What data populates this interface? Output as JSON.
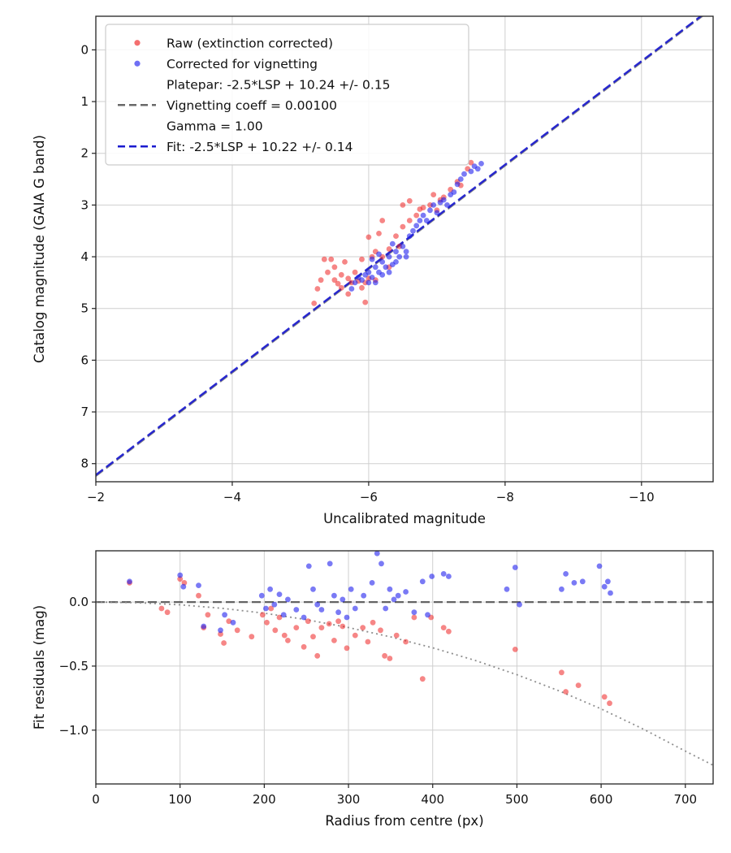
{
  "figure": {
    "background": "#ffffff"
  },
  "chart_data": [
    {
      "type": "scatter",
      "title": "",
      "xlabel": "Uncalibrated magnitude",
      "ylabel": "Catalog magnitude (GAIA G band)",
      "xlim": [
        -2,
        -11.05
      ],
      "ylim": [
        -0.65,
        8.35
      ],
      "grid": true,
      "xticks": {
        "values": [
          -2,
          -4,
          -6,
          -8,
          -10
        ],
        "labels": [
          "−2",
          "−4",
          "−6",
          "−8",
          "−10"
        ]
      },
      "yticks": {
        "values": [
          0,
          1,
          2,
          3,
          4,
          5,
          6,
          7,
          8
        ],
        "labels": [
          "0",
          "1",
          "2",
          "3",
          "4",
          "5",
          "6",
          "7",
          "8"
        ]
      },
      "lines": [
        {
          "name": "platepar-line",
          "x": [
            -2,
            -11.05
          ],
          "y": [
            8.24,
            -0.81
          ],
          "color": "#808080",
          "dash": "11 5",
          "width": 2.2,
          "opacity": 0.9
        },
        {
          "name": "fit-line",
          "x": [
            -2,
            -11.05
          ],
          "y": [
            8.22,
            -0.83
          ],
          "color": "#1a1acf",
          "dash": "11 5",
          "width": 2.5,
          "opacity": 0.92
        }
      ],
      "series": [
        {
          "name": "raw-points",
          "color": "#ee2222",
          "opacity": 0.55,
          "size": 3.4,
          "points": [
            [
              -5.2,
              4.9
            ],
            [
              -5.25,
              4.62
            ],
            [
              -5.3,
              4.45
            ],
            [
              -5.35,
              4.05
            ],
            [
              -5.4,
              4.3
            ],
            [
              -5.45,
              4.05
            ],
            [
              -5.5,
              4.45
            ],
            [
              -5.5,
              4.2
            ],
            [
              -5.55,
              4.52
            ],
            [
              -5.6,
              4.35
            ],
            [
              -5.6,
              4.6
            ],
            [
              -5.65,
              4.1
            ],
            [
              -5.7,
              4.42
            ],
            [
              -5.7,
              4.72
            ],
            [
              -5.75,
              4.5
            ],
            [
              -5.8,
              4.3
            ],
            [
              -5.85,
              4.47
            ],
            [
              -5.9,
              4.6
            ],
            [
              -5.9,
              4.05
            ],
            [
              -5.95,
              4.5
            ],
            [
              -6.0,
              4.42
            ],
            [
              -6.0,
              3.62
            ],
            [
              -6.05,
              4.0
            ],
            [
              -6.1,
              3.9
            ],
            [
              -6.1,
              4.45
            ],
            [
              -6.15,
              3.55
            ],
            [
              -6.2,
              4.0
            ],
            [
              -6.2,
              3.3
            ],
            [
              -6.3,
              3.85
            ],
            [
              -6.3,
              4.2
            ],
            [
              -6.4,
              3.6
            ],
            [
              -6.45,
              3.8
            ],
            [
              -6.5,
              3.42
            ],
            [
              -6.5,
              3.0
            ],
            [
              -6.6,
              3.3
            ],
            [
              -6.6,
              2.92
            ],
            [
              -6.7,
              3.2
            ],
            [
              -6.75,
              3.08
            ],
            [
              -6.8,
              3.05
            ],
            [
              -6.9,
              3.0
            ],
            [
              -6.95,
              2.8
            ],
            [
              -7.0,
              3.1
            ],
            [
              -7.05,
              2.9
            ],
            [
              -7.1,
              2.85
            ],
            [
              -7.2,
              2.7
            ],
            [
              -7.3,
              2.55
            ],
            [
              -7.35,
              2.62
            ],
            [
              -7.45,
              2.3
            ],
            [
              -7.5,
              2.18
            ],
            [
              -5.95,
              4.88
            ]
          ]
        },
        {
          "name": "corrected-points",
          "color": "#2222ee",
          "opacity": 0.6,
          "size": 3.4,
          "points": [
            [
              -5.75,
              4.62
            ],
            [
              -5.8,
              4.5
            ],
            [
              -5.85,
              4.4
            ],
            [
              -5.9,
              4.45
            ],
            [
              -5.95,
              4.35
            ],
            [
              -6.0,
              4.5
            ],
            [
              -6.0,
              4.3
            ],
            [
              -6.05,
              4.4
            ],
            [
              -6.05,
              4.05
            ],
            [
              -6.1,
              4.2
            ],
            [
              -6.1,
              4.5
            ],
            [
              -6.15,
              4.3
            ],
            [
              -6.15,
              3.95
            ],
            [
              -6.2,
              4.1
            ],
            [
              -6.2,
              4.35
            ],
            [
              -6.25,
              4.2
            ],
            [
              -6.3,
              4.0
            ],
            [
              -6.3,
              4.3
            ],
            [
              -6.35,
              4.15
            ],
            [
              -6.4,
              3.9
            ],
            [
              -6.4,
              4.1
            ],
            [
              -6.45,
              4.0
            ],
            [
              -6.5,
              3.8
            ],
            [
              -6.55,
              3.9
            ],
            [
              -6.6,
              3.6
            ],
            [
              -6.65,
              3.5
            ],
            [
              -6.7,
              3.4
            ],
            [
              -6.75,
              3.3
            ],
            [
              -6.8,
              3.2
            ],
            [
              -6.85,
              3.3
            ],
            [
              -6.9,
              3.1
            ],
            [
              -6.95,
              3.0
            ],
            [
              -7.0,
              3.15
            ],
            [
              -7.05,
              2.95
            ],
            [
              -7.1,
              2.9
            ],
            [
              -7.15,
              3.0
            ],
            [
              -7.2,
              2.8
            ],
            [
              -7.25,
              2.75
            ],
            [
              -7.3,
              2.6
            ],
            [
              -7.35,
              2.5
            ],
            [
              -7.4,
              2.4
            ],
            [
              -7.5,
              2.35
            ],
            [
              -7.55,
              2.25
            ],
            [
              -7.6,
              2.3
            ],
            [
              -7.65,
              2.2
            ],
            [
              -6.35,
              3.75
            ],
            [
              -6.55,
              4.0
            ]
          ]
        }
      ],
      "legend": {
        "entries": [
          {
            "marker": "dot",
            "color": "#ee2222",
            "label_lines": [
              "Raw (extinction corrected)"
            ]
          },
          {
            "marker": "dot",
            "color": "#2222ee",
            "label_lines": [
              "Corrected for vignetting"
            ]
          },
          {
            "marker": "dash",
            "color": "#696969",
            "label_lines": [
              "Platepar: -2.5*LSP + 10.24 +/- 0.15",
              "Vignetting coeff = 0.00100",
              "Gamma = 1.00"
            ]
          },
          {
            "marker": "dash",
            "color": "#1a1acf",
            "label_lines": [
              "Fit: -2.5*LSP + 10.22 +/- 0.14"
            ]
          }
        ]
      }
    },
    {
      "type": "scatter",
      "title": "",
      "xlabel": "Radius from centre (px)",
      "ylabel": "Fit residuals (mag)",
      "xlim": [
        0,
        733
      ],
      "ylim": [
        0.4,
        -1.42
      ],
      "grid": true,
      "xticks": {
        "values": [
          0,
          100,
          200,
          300,
          400,
          500,
          600,
          700
        ],
        "labels": [
          "0",
          "100",
          "200",
          "300",
          "400",
          "500",
          "600",
          "700"
        ]
      },
      "yticks": {
        "values": [
          0.0,
          -0.5,
          -1.0
        ],
        "labels": [
          "0.0",
          "−0.5",
          "−1.0"
        ]
      },
      "lines": [
        {
          "name": "zero-line",
          "x": [
            0,
            733
          ],
          "y": [
            0,
            0
          ],
          "color": "#555555",
          "dash": "11 5",
          "width": 2.2,
          "opacity": 0.9
        }
      ],
      "curves": [
        {
          "name": "vignetting-loss-curve",
          "color": "#888888",
          "dash": "2 4",
          "width": 1.8,
          "opacity": 0.95,
          "points": [
            [
              0,
              0
            ],
            [
              50,
              -0.005
            ],
            [
              100,
              -0.022
            ],
            [
              150,
              -0.049
            ],
            [
              200,
              -0.087
            ],
            [
              250,
              -0.137
            ],
            [
              300,
              -0.199
            ],
            [
              350,
              -0.272
            ],
            [
              400,
              -0.357
            ],
            [
              450,
              -0.455
            ],
            [
              500,
              -0.567
            ],
            [
              550,
              -0.693
            ],
            [
              600,
              -0.834
            ],
            [
              650,
              -0.991
            ],
            [
              700,
              -1.164
            ],
            [
              733,
              -1.274
            ]
          ]
        }
      ],
      "series": [
        {
          "name": "raw-residuals",
          "color": "#ee2222",
          "opacity": 0.55,
          "size": 3.4,
          "points": [
            [
              40,
              0.15
            ],
            [
              78,
              -0.05
            ],
            [
              85,
              -0.08
            ],
            [
              100,
              0.18
            ],
            [
              105,
              0.15
            ],
            [
              122,
              0.05
            ],
            [
              128,
              -0.2
            ],
            [
              133,
              -0.1
            ],
            [
              148,
              -0.25
            ],
            [
              152,
              -0.32
            ],
            [
              158,
              -0.15
            ],
            [
              168,
              -0.22
            ],
            [
              185,
              -0.27
            ],
            [
              198,
              -0.1
            ],
            [
              203,
              -0.16
            ],
            [
              208,
              -0.05
            ],
            [
              213,
              -0.22
            ],
            [
              218,
              -0.12
            ],
            [
              224,
              -0.26
            ],
            [
              228,
              -0.3
            ],
            [
              238,
              -0.2
            ],
            [
              247,
              -0.35
            ],
            [
              252,
              -0.15
            ],
            [
              258,
              -0.27
            ],
            [
              263,
              -0.42
            ],
            [
              268,
              -0.2
            ],
            [
              277,
              -0.17
            ],
            [
              283,
              -0.3
            ],
            [
              288,
              -0.15
            ],
            [
              293,
              -0.19
            ],
            [
              298,
              -0.36
            ],
            [
              308,
              -0.26
            ],
            [
              317,
              -0.2
            ],
            [
              323,
              -0.31
            ],
            [
              329,
              -0.16
            ],
            [
              338,
              -0.22
            ],
            [
              343,
              -0.42
            ],
            [
              349,
              -0.44
            ],
            [
              357,
              -0.26
            ],
            [
              368,
              -0.31
            ],
            [
              378,
              -0.12
            ],
            [
              388,
              -0.6
            ],
            [
              398,
              -0.12
            ],
            [
              413,
              -0.2
            ],
            [
              419,
              -0.23
            ],
            [
              498,
              -0.37
            ],
            [
              553,
              -0.55
            ],
            [
              558,
              -0.7
            ],
            [
              573,
              -0.65
            ],
            [
              604,
              -0.74
            ],
            [
              610,
              -0.79
            ]
          ]
        },
        {
          "name": "corrected-residuals",
          "color": "#2222ee",
          "opacity": 0.6,
          "size": 3.4,
          "points": [
            [
              40,
              0.16
            ],
            [
              100,
              0.21
            ],
            [
              104,
              0.12
            ],
            [
              122,
              0.13
            ],
            [
              128,
              -0.19
            ],
            [
              148,
              -0.22
            ],
            [
              153,
              -0.1
            ],
            [
              163,
              -0.16
            ],
            [
              197,
              0.05
            ],
            [
              202,
              -0.05
            ],
            [
              207,
              0.1
            ],
            [
              212,
              -0.02
            ],
            [
              218,
              0.06
            ],
            [
              223,
              -0.1
            ],
            [
              228,
              0.02
            ],
            [
              238,
              -0.06
            ],
            [
              247,
              -0.12
            ],
            [
              253,
              0.28
            ],
            [
              258,
              0.1
            ],
            [
              263,
              -0.02
            ],
            [
              268,
              -0.06
            ],
            [
              278,
              0.3
            ],
            [
              283,
              0.05
            ],
            [
              288,
              -0.08
            ],
            [
              293,
              0.02
            ],
            [
              298,
              -0.12
            ],
            [
              303,
              0.1
            ],
            [
              308,
              -0.05
            ],
            [
              318,
              0.05
            ],
            [
              328,
              0.15
            ],
            [
              334,
              0.38
            ],
            [
              339,
              0.3
            ],
            [
              344,
              -0.05
            ],
            [
              349,
              0.1
            ],
            [
              354,
              0.02
            ],
            [
              359,
              0.05
            ],
            [
              368,
              0.08
            ],
            [
              378,
              -0.08
            ],
            [
              388,
              0.16
            ],
            [
              394,
              -0.1
            ],
            [
              399,
              0.2
            ],
            [
              413,
              0.22
            ],
            [
              419,
              0.2
            ],
            [
              488,
              0.1
            ],
            [
              498,
              0.27
            ],
            [
              503,
              -0.02
            ],
            [
              553,
              0.1
            ],
            [
              558,
              0.22
            ],
            [
              568,
              0.15
            ],
            [
              578,
              0.16
            ],
            [
              598,
              0.28
            ],
            [
              604,
              0.12
            ],
            [
              608,
              0.16
            ],
            [
              611,
              0.07
            ]
          ]
        }
      ]
    }
  ]
}
